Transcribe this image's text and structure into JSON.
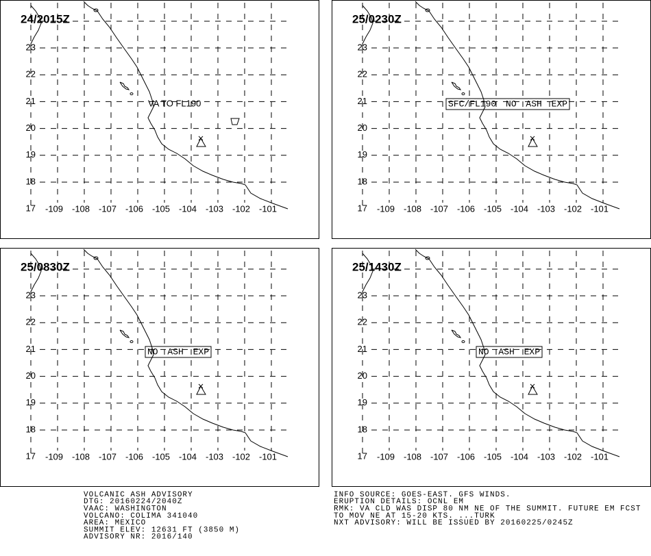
{
  "panels": [
    {
      "time": "24/2015Z",
      "annotation": "VA TO FL190",
      "annotation_boxed": false
    },
    {
      "time": "25/0230Z",
      "annotation": "SFC/FL190 NO ASH EXP",
      "annotation_boxed": true
    },
    {
      "time": "25/0830Z",
      "annotation": "NO ASH EXP",
      "annotation_boxed": true
    },
    {
      "time": "25/1430Z",
      "annotation": "NO ASH EXP",
      "annotation_boxed": true
    }
  ],
  "lat_labels": [
    "23",
    "22",
    "21",
    "20",
    "19",
    "18",
    "17"
  ],
  "lon_labels": [
    "-109",
    "-108",
    "-107",
    "-106",
    "-105",
    "-104",
    "-103",
    "-102",
    "-101"
  ],
  "advisory_left": [
    "VOLCANIC ASH ADVISORY",
    "DTG: 20160224/2040Z",
    "VAAC: WASHINGTON",
    "VOLCANO: COLIMA 341040",
    "AREA: MEXICO",
    "SUMMIT ELEV: 12631 FT (3850 M)",
    "ADVISORY NR: 2016/140"
  ],
  "advisory_right": [
    "INFO SOURCE: GOES-EAST. GFS WINDS.",
    "ERUPTION DETAILS: OCNL EM",
    "RMK: VA CLD WAS DISP 80 NM NE OF THE SUMMIT. FUTURE EM FCST",
    "TO MOV NE AT 15-20 KTS. ...TURK",
    "NXT ADVISORY: WILL BE ISSUED BY 20160225/0245Z"
  ]
}
